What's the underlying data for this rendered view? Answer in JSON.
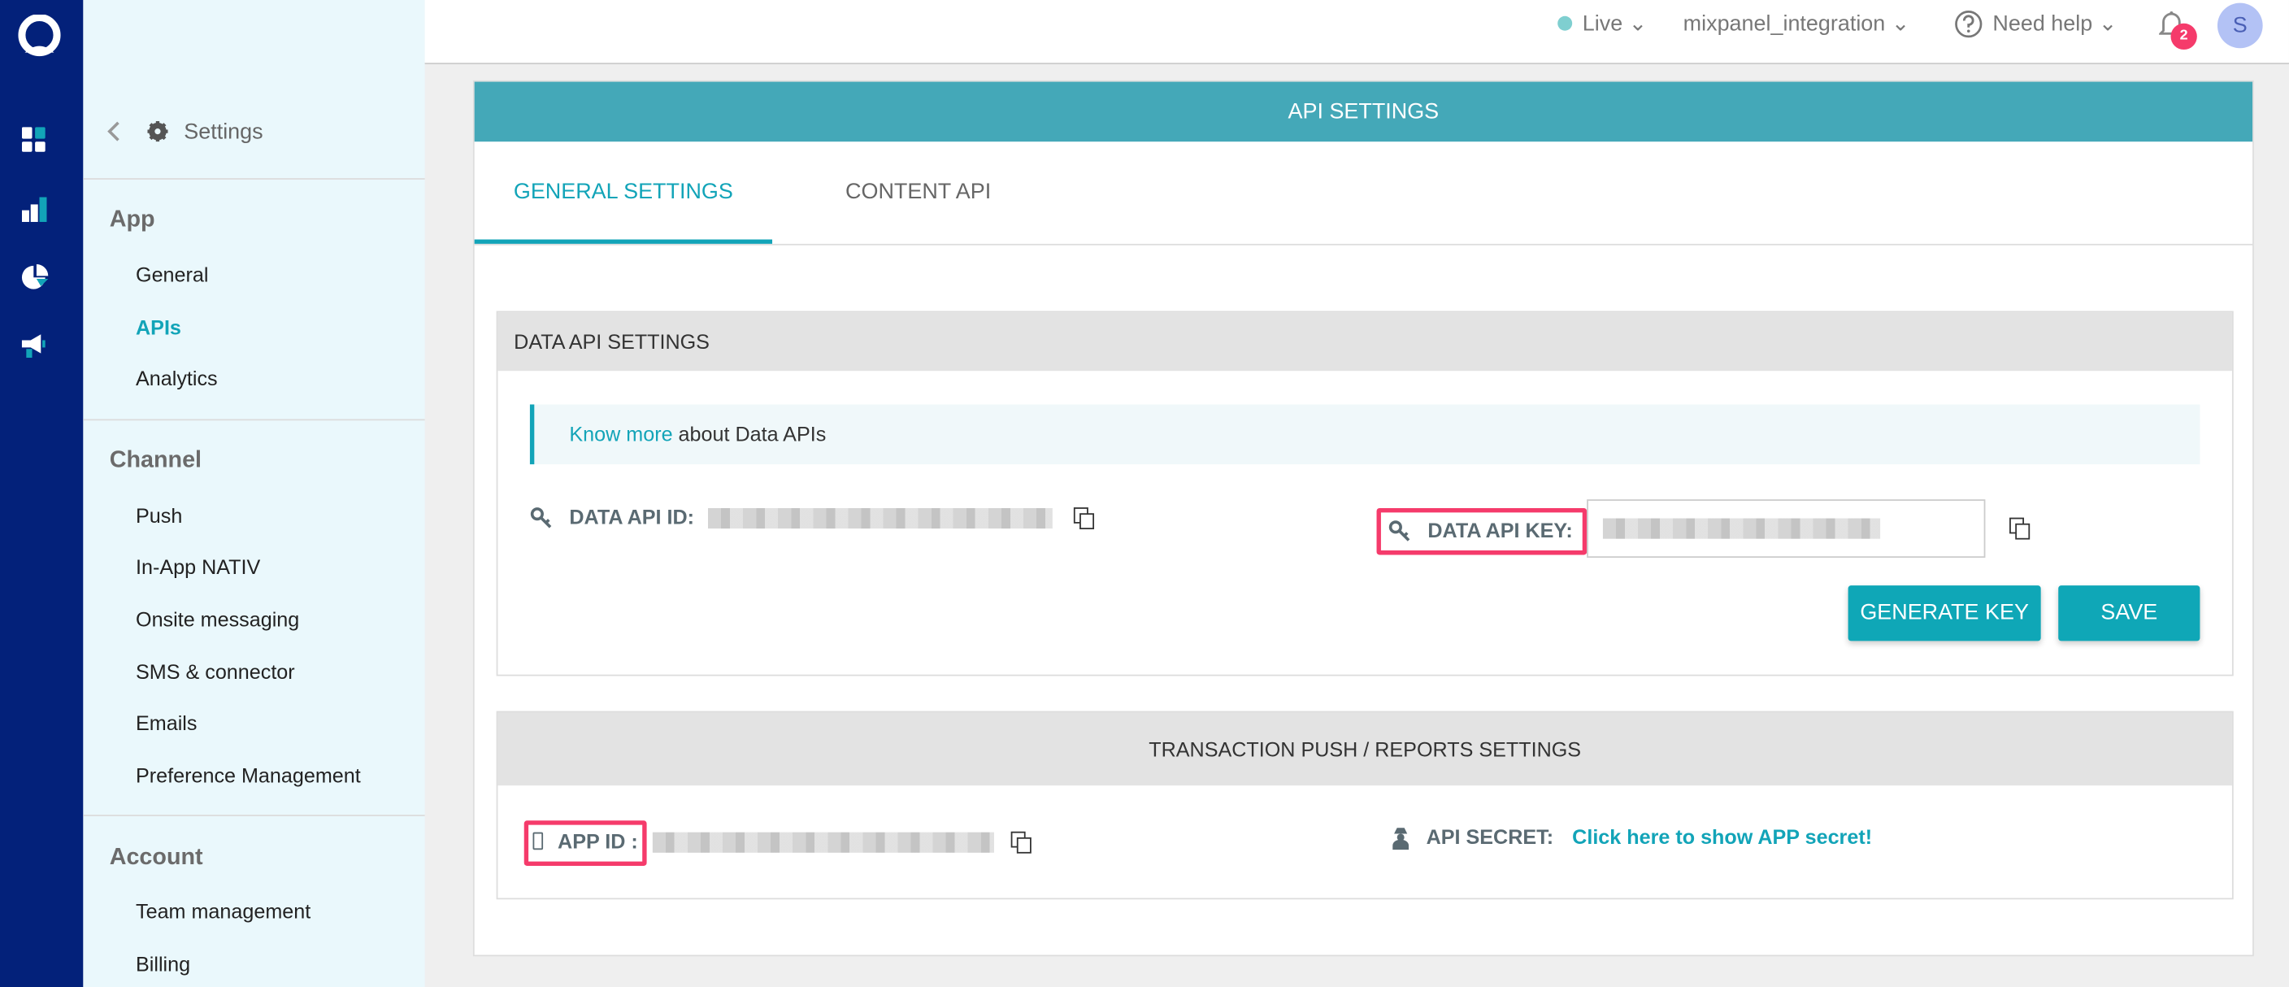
{
  "colors": {
    "rail": "#03217a",
    "accent": "#12a4b8",
    "header": "#44a8b8",
    "highlight": "#f53b6b",
    "live": "#7fcfd0",
    "badge": "#f53b6b",
    "avatar": "#b3c2f5"
  },
  "sidebar": {
    "back_label": "Settings",
    "sections": [
      {
        "title": "App",
        "items": [
          {
            "label": "General"
          },
          {
            "label": "APIs",
            "active": true
          },
          {
            "label": "Analytics"
          }
        ]
      },
      {
        "title": "Channel",
        "items": [
          {
            "label": "Push"
          },
          {
            "label": "In-App NATIV"
          },
          {
            "label": "Onsite messaging"
          },
          {
            "label": "SMS & connector"
          },
          {
            "label": "Emails"
          },
          {
            "label": "Preference Management"
          }
        ]
      },
      {
        "title": "Account",
        "items": [
          {
            "label": "Team management"
          },
          {
            "label": "Billing"
          }
        ]
      }
    ]
  },
  "topbar": {
    "env": "Live",
    "app": "mixpanel_integration",
    "help": "Need help",
    "notifications": "2",
    "avatar": "S"
  },
  "card": {
    "title": "API SETTINGS",
    "tabs": [
      {
        "label": "GENERAL SETTINGS",
        "active": true
      },
      {
        "label": "CONTENT API"
      }
    ]
  },
  "data_api": {
    "title": "DATA API SETTINGS",
    "info_link": "Know more",
    "info_text": " about Data APIs",
    "id_label": "DATA API ID:",
    "key_label": "DATA API KEY:",
    "generate": "GENERATE KEY",
    "save": "SAVE"
  },
  "transaction": {
    "title": "TRANSACTION PUSH / REPORTS SETTINGS",
    "app_id_label": "APP ID :",
    "secret_label": "API SECRET:",
    "secret_link": "Click here to show APP secret!"
  }
}
